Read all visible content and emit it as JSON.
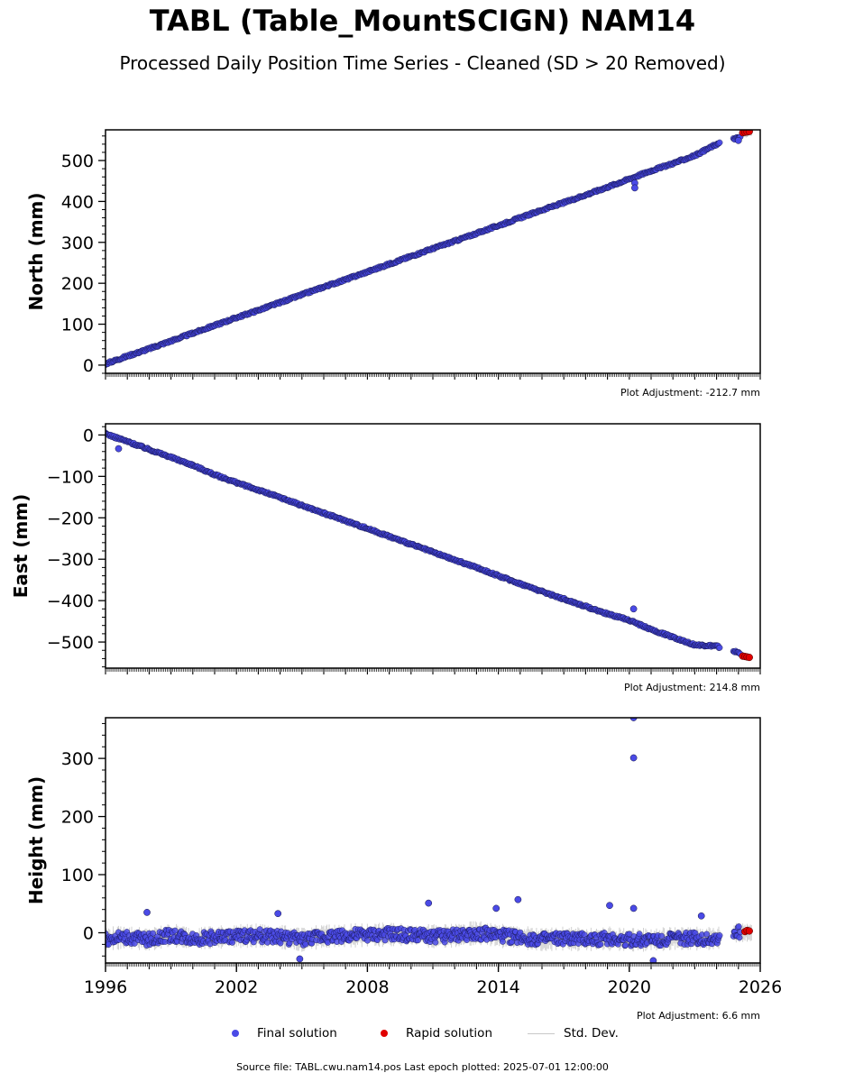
{
  "figure": {
    "title": "TABL (Table_MountSCIGN) NAM14",
    "subtitle": "Processed Daily Position Time Series - Cleaned (SD > 20 Removed)",
    "footer": "Source file: TABL.cwu.nam14.pos  Last epoch plotted: 2025-07-01 12:00:00",
    "legend": [
      {
        "label": "Final solution",
        "color": "#4a4ae6"
      },
      {
        "label": "Rapid solution",
        "color": "#e00000"
      },
      {
        "label": "Std. Dev.",
        "color": "#c8c8c8"
      }
    ]
  },
  "chart_data": [
    {
      "type": "scatter",
      "ylabel": "North (mm)",
      "xlim": [
        1996,
        2026
      ],
      "ylim": [
        -20,
        575
      ],
      "yticks": [
        0,
        100,
        200,
        300,
        400,
        500
      ],
      "ytick_labels": [
        "0",
        "100",
        "200",
        "300",
        "400",
        "500"
      ],
      "xtick_labels": [],
      "annotation": "Plot Adjustment: -212.7 mm",
      "series": [
        {
          "name": "Final solution",
          "x": [
            1996.0,
            1997.0,
            1998.0,
            1999.0,
            2000.0,
            2001.0,
            2002.0,
            2003.0,
            2004.0,
            2005.0,
            2006.0,
            2007.0,
            2008.0,
            2009.0,
            2010.0,
            2011.0,
            2012.0,
            2013.0,
            2014.0,
            2015.0,
            2016.0,
            2017.0,
            2018.0,
            2019.0,
            2020.0,
            2021.0,
            2022.0,
            2023.0,
            2024.0,
            2024.8,
            2025.3,
            2025.5
          ],
          "y": [
            3,
            22,
            40,
            59,
            78,
            97,
            116,
            134,
            153,
            172,
            191,
            209,
            228,
            247,
            266,
            285,
            303,
            322,
            341,
            360,
            379,
            397,
            416,
            435,
            455,
            475,
            493,
            512,
            540,
            553,
            560,
            565
          ]
        },
        {
          "name": "Final solution (outliers)",
          "x": [
            2020.25,
            2020.25,
            2025.0
          ],
          "y": [
            445,
            433,
            549
          ]
        },
        {
          "name": "Rapid solution",
          "x": [
            2025.2,
            2025.3,
            2025.4,
            2025.5
          ],
          "y": [
            568,
            569,
            570,
            571
          ]
        }
      ]
    },
    {
      "type": "scatter",
      "ylabel": "East (mm)",
      "xlim": [
        1996,
        2026
      ],
      "ylim": [
        -563,
        27
      ],
      "yticks": [
        0,
        -100,
        -200,
        -300,
        -400,
        -500
      ],
      "ytick_labels": [
        "0",
        "−100",
        "−200",
        "−300",
        "−400",
        "−500"
      ],
      "xtick_labels": [],
      "annotation": "Plot Adjustment: 214.8 mm",
      "series": [
        {
          "name": "Final solution",
          "x": [
            1996.0,
            1997.0,
            1998.0,
            1999.0,
            2000.0,
            2001.0,
            2002.0,
            2003.0,
            2004.0,
            2005.0,
            2006.0,
            2007.0,
            2008.0,
            2009.0,
            2010.0,
            2011.0,
            2012.0,
            2013.0,
            2014.0,
            2015.0,
            2016.0,
            2017.0,
            2018.0,
            2019.0,
            2020.0,
            2021.0,
            2022.0,
            2023.0,
            2024.0,
            2024.8,
            2025.3,
            2025.5
          ],
          "y": [
            3,
            -16,
            -35,
            -54,
            -73,
            -96,
            -115,
            -133,
            -151,
            -170,
            -189,
            -207,
            -226,
            -245,
            -264,
            -283,
            -302,
            -320,
            -340,
            -359,
            -378,
            -396,
            -414,
            -432,
            -447,
            -470,
            -488,
            -507,
            -510,
            -523,
            -530,
            -535
          ]
        },
        {
          "name": "Final solution (outliers)",
          "x": [
            1996.6,
            2020.2
          ],
          "y": [
            -33,
            -420
          ]
        },
        {
          "name": "Rapid solution",
          "x": [
            2025.2,
            2025.3,
            2025.4,
            2025.5
          ],
          "y": [
            -534,
            -535,
            -536,
            -537
          ]
        }
      ]
    },
    {
      "type": "scatter",
      "ylabel": "Height (mm)",
      "xlim": [
        1996,
        2026
      ],
      "ylim": [
        -52,
        370
      ],
      "yticks": [
        0,
        100,
        200,
        300
      ],
      "ytick_labels": [
        "0",
        "100",
        "200",
        "300"
      ],
      "xticks": [
        1996,
        2002,
        2008,
        2014,
        2020,
        2026
      ],
      "xtick_labels": [
        "1996",
        "2002",
        "2008",
        "2014",
        "2020",
        "2026"
      ],
      "annotation": "Plot Adjustment: 6.6 mm",
      "series": [
        {
          "name": "Final solution",
          "x": [
            1996.0,
            1997.0,
            1998.0,
            1999.0,
            2000.0,
            2001.0,
            2002.0,
            2003.0,
            2004.0,
            2005.0,
            2006.0,
            2007.0,
            2008.0,
            2009.0,
            2010.0,
            2011.0,
            2012.0,
            2013.0,
            2014.0,
            2015.0,
            2016.0,
            2017.0,
            2018.0,
            2019.0,
            2020.0,
            2021.0,
            2022.0,
            2023.0,
            2024.0,
            2024.8,
            2025.3,
            2025.5
          ],
          "y": [
            -10,
            -8,
            -12,
            -4,
            -10,
            -8,
            -6,
            -5,
            -7,
            -12,
            -6,
            -5,
            -4,
            -3,
            -4,
            -6,
            -5,
            0,
            -5,
            -8,
            -12,
            -10,
            -12,
            -10,
            -12,
            -12,
            -10,
            -10,
            -10,
            0,
            0,
            0
          ]
        },
        {
          "name": "Final solution (outliers)",
          "x": [
            1997.9,
            2003.9,
            2004.9,
            2010.8,
            2013.9,
            2014.9,
            2019.1,
            2020.2,
            2020.2,
            2020.2,
            2021.1,
            2023.3
          ],
          "y": [
            35,
            33,
            -45,
            51,
            42,
            57,
            47,
            370,
            301,
            42,
            -48,
            29
          ]
        },
        {
          "name": "Rapid solution",
          "x": [
            2025.3,
            2025.4,
            2025.5
          ],
          "y": [
            2,
            4,
            3
          ]
        }
      ]
    }
  ]
}
